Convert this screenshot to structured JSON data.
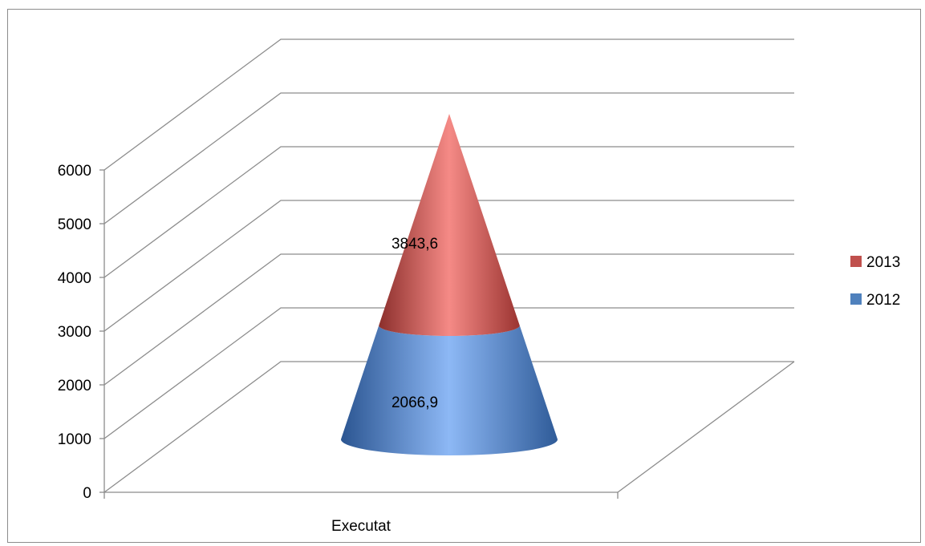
{
  "chart_data": {
    "type": "bar",
    "shape": "3d-cone",
    "categories": [
      "Executat"
    ],
    "series": [
      {
        "name": "2012",
        "values": [
          2066.9
        ],
        "color": "#4f81bd"
      },
      {
        "name": "2013",
        "values": [
          3843.6
        ],
        "color": "#c0504d"
      }
    ],
    "data_labels": [
      "2066,9",
      "3843,6"
    ],
    "stacked": true,
    "ylim": [
      0,
      6000
    ],
    "yticks": [
      0,
      1000,
      2000,
      3000,
      4000,
      5000,
      6000
    ],
    "ytick_labels": [
      "0",
      "1000",
      "2000",
      "3000",
      "4000",
      "5000",
      "6000"
    ],
    "grid": true,
    "legend_position": "right",
    "title": "",
    "xlabel": "",
    "ylabel": ""
  }
}
